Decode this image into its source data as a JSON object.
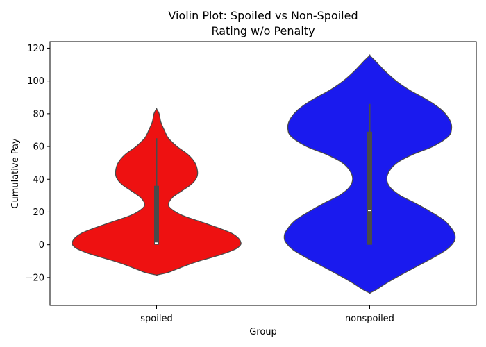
{
  "chart_data": {
    "type": "violin",
    "title": "Violin Plot: Spoiled vs Non-Spoiled",
    "subtitle": "Rating w/o Penalty",
    "xlabel": "Group",
    "ylabel": "Cumulative Pay",
    "ylim": [
      -37,
      124
    ],
    "yticks": [
      -20,
      0,
      20,
      40,
      60,
      80,
      100,
      120
    ],
    "ytick_labels": [
      "−20",
      "0",
      "20",
      "40",
      "60",
      "80",
      "100",
      "120"
    ],
    "categories": [
      "spoiled",
      "nonspoiled"
    ],
    "grid": false,
    "series": [
      {
        "category": "spoiled",
        "color": "#ee1111",
        "stats": {
          "whisker_low": 0,
          "q1": 0,
          "median": 1,
          "q3": 36,
          "whisker_high": 65
        },
        "density_profile": [
          [
            83,
            0.0
          ],
          [
            80,
            0.03
          ],
          [
            75,
            0.05
          ],
          [
            70,
            0.09
          ],
          [
            65,
            0.14
          ],
          [
            60,
            0.24
          ],
          [
            55,
            0.37
          ],
          [
            50,
            0.45
          ],
          [
            45,
            0.48
          ],
          [
            41,
            0.47
          ],
          [
            37,
            0.41
          ],
          [
            33,
            0.3
          ],
          [
            29,
            0.19
          ],
          [
            25,
            0.14
          ],
          [
            22,
            0.17
          ],
          [
            18,
            0.3
          ],
          [
            14,
            0.52
          ],
          [
            10,
            0.74
          ],
          [
            7,
            0.88
          ],
          [
            4,
            0.96
          ],
          [
            1,
            0.99
          ],
          [
            -1,
            0.97
          ],
          [
            -3,
            0.91
          ],
          [
            -6,
            0.76
          ],
          [
            -9,
            0.56
          ],
          [
            -12,
            0.38
          ],
          [
            -15,
            0.23
          ],
          [
            -17,
            0.13
          ],
          [
            -18.5,
            0.0
          ]
        ]
      },
      {
        "category": "nonspoiled",
        "color": "#1a1aee",
        "stats": {
          "whisker_low": 0,
          "q1": 0,
          "median": 21,
          "q3": 69,
          "whisker_high": 86
        },
        "density_profile": [
          [
            115.5,
            0.0
          ],
          [
            112,
            0.07
          ],
          [
            106,
            0.18
          ],
          [
            100,
            0.31
          ],
          [
            94,
            0.48
          ],
          [
            88,
            0.69
          ],
          [
            82,
            0.85
          ],
          [
            76,
            0.94
          ],
          [
            71,
            0.96
          ],
          [
            66,
            0.92
          ],
          [
            60,
            0.74
          ],
          [
            55,
            0.5
          ],
          [
            50,
            0.32
          ],
          [
            45,
            0.23
          ],
          [
            40,
            0.2
          ],
          [
            35,
            0.24
          ],
          [
            30,
            0.36
          ],
          [
            25,
            0.55
          ],
          [
            20,
            0.72
          ],
          [
            15,
            0.87
          ],
          [
            10,
            0.96
          ],
          [
            6,
            1.0
          ],
          [
            2,
            0.99
          ],
          [
            -3,
            0.9
          ],
          [
            -8,
            0.74
          ],
          [
            -13,
            0.56
          ],
          [
            -18,
            0.38
          ],
          [
            -23,
            0.21
          ],
          [
            -27,
            0.09
          ],
          [
            -29.5,
            0.0
          ]
        ]
      }
    ]
  }
}
